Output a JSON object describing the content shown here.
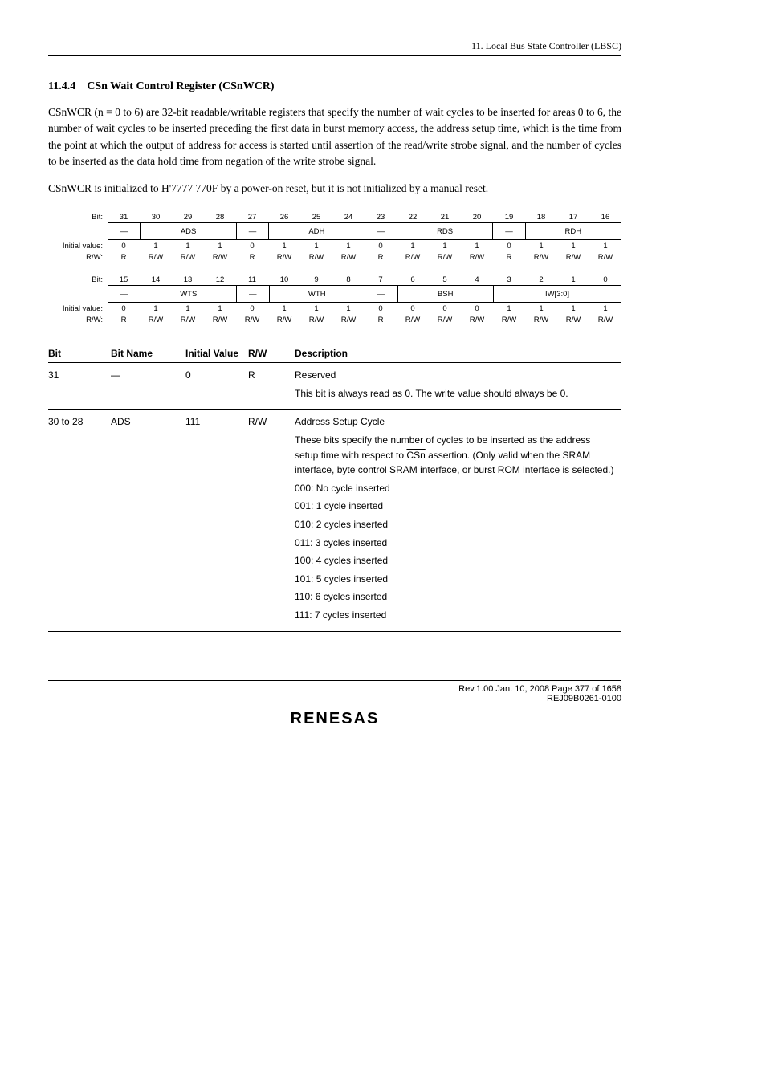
{
  "header": {
    "text": "11.   Local Bus State Controller (LBSC)"
  },
  "section": {
    "number": "11.4.4",
    "title": "CSn Wait Control Register (CSnWCR)"
  },
  "para1": "CSnWCR (n = 0 to 6) are 32-bit readable/writable registers that specify the number of wait cycles to be inserted for areas 0 to 6, the number of wait cycles to be inserted preceding the first data in burst memory access, the address setup time, which is the time from the point at which the output of address for access is started until assertion of the read/write strobe signal, and the number of cycles to be inserted as the data hold time from negation of the write strobe signal.",
  "para2": "CSnWCR is initialized to H'7777 770F by a power-on reset, but it is not initialized by a manual reset.",
  "bitfield_high": {
    "bits": [
      "31",
      "30",
      "29",
      "28",
      "27",
      "26",
      "25",
      "24",
      "23",
      "22",
      "21",
      "20",
      "19",
      "18",
      "17",
      "16"
    ],
    "names": [
      {
        "label": "—",
        "span": 1
      },
      {
        "label": "ADS",
        "span": 3
      },
      {
        "label": "—",
        "span": 1
      },
      {
        "label": "ADH",
        "span": 3
      },
      {
        "label": "—",
        "span": 1
      },
      {
        "label": "RDS",
        "span": 3
      },
      {
        "label": "—",
        "span": 1
      },
      {
        "label": "RDH",
        "span": 3
      }
    ],
    "initial": [
      "0",
      "1",
      "1",
      "1",
      "0",
      "1",
      "1",
      "1",
      "0",
      "1",
      "1",
      "1",
      "0",
      "1",
      "1",
      "1"
    ],
    "rw": [
      "R",
      "R/W",
      "R/W",
      "R/W",
      "R",
      "R/W",
      "R/W",
      "R/W",
      "R",
      "R/W",
      "R/W",
      "R/W",
      "R",
      "R/W",
      "R/W",
      "R/W"
    ]
  },
  "bitfield_low": {
    "bits": [
      "15",
      "14",
      "13",
      "12",
      "11",
      "10",
      "9",
      "8",
      "7",
      "6",
      "5",
      "4",
      "3",
      "2",
      "1",
      "0"
    ],
    "names": [
      {
        "label": "—",
        "span": 1
      },
      {
        "label": "WTS",
        "span": 3
      },
      {
        "label": "—",
        "span": 1
      },
      {
        "label": "WTH",
        "span": 3
      },
      {
        "label": "—",
        "span": 1
      },
      {
        "label": "BSH",
        "span": 3
      },
      {
        "label": "IW[3:0]",
        "span": 4
      }
    ],
    "initial": [
      "0",
      "1",
      "1",
      "1",
      "0",
      "1",
      "1",
      "1",
      "0",
      "0",
      "0",
      "0",
      "1",
      "1",
      "1",
      "1"
    ],
    "rw": [
      "R",
      "R/W",
      "R/W",
      "R/W",
      "R/W",
      "R/W",
      "R/W",
      "R/W",
      "R",
      "R/W",
      "R/W",
      "R/W",
      "R/W",
      "R/W",
      "R/W",
      "R/W"
    ]
  },
  "desc_table": {
    "headers": [
      "Bit",
      "Bit Name",
      "Initial Value",
      "R/W",
      "Description"
    ],
    "rows": [
      {
        "bit": "31",
        "name": "—",
        "iv": "0",
        "rw": "R",
        "desc": [
          "Reserved",
          "This bit is always read as 0. The write value should always be 0."
        ]
      },
      {
        "bit": "30 to 28",
        "name": "ADS",
        "iv": "111",
        "rw": "R/W",
        "desc": [
          "Address Setup Cycle",
          "These bits specify the number of cycles to be inserted as the address setup time with respect to CSn assertion. (Only valid when the SRAM interface, byte control SRAM interface, or burst ROM interface is selected.)",
          "000: No cycle inserted",
          "001: 1 cycle inserted",
          "010: 2 cycles inserted",
          "011: 3 cycles inserted",
          "100: 4 cycles inserted",
          "101: 5 cycles inserted",
          "110: 6 cycles inserted",
          "111: 7 cycles inserted"
        ],
        "csn_overline_in_line": 1
      }
    ]
  },
  "footer": {
    "line1": "Rev.1.00  Jan. 10, 2008  Page 377 of 1658",
    "line2": "REJ09B0261-0100",
    "logo": "RENESAS"
  }
}
